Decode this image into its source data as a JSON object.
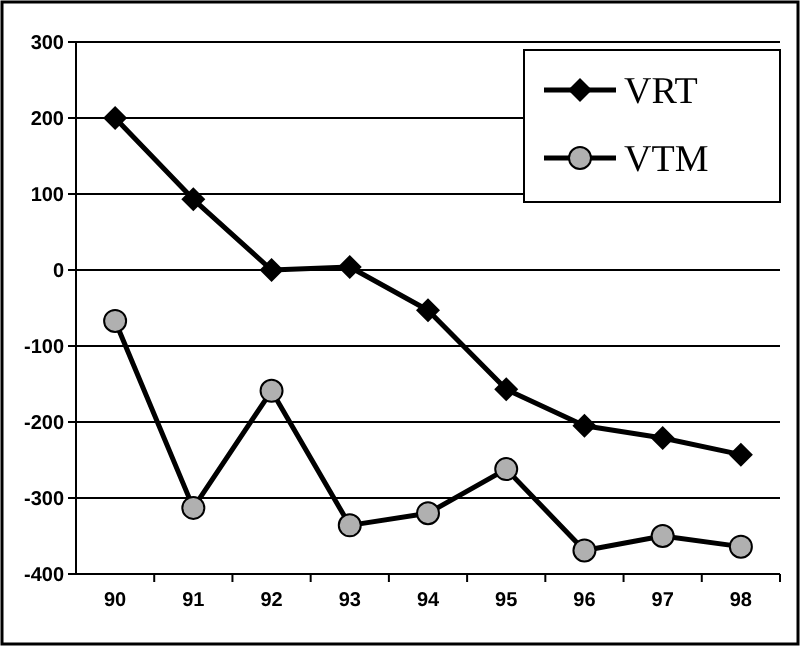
{
  "chart_data": {
    "type": "line",
    "categories": [
      "90",
      "91",
      "92",
      "93",
      "94",
      "95",
      "96",
      "97",
      "98"
    ],
    "series": [
      {
        "name": "VRT",
        "color": "#000000",
        "marker": "diamond",
        "values": [
          200,
          93,
          0,
          4,
          -53,
          -157,
          -205,
          -221,
          -243
        ]
      },
      {
        "name": "VTM",
        "color": "#000000",
        "marker": "circle",
        "values": [
          -67,
          -313,
          -159,
          -336,
          -320,
          -262,
          -369,
          -350,
          -364
        ]
      }
    ],
    "ylim": [
      -400,
      300
    ],
    "yticks": [
      -400,
      -300,
      -200,
      -100,
      0,
      100,
      200,
      300
    ],
    "grid": "y",
    "legend": "top right",
    "line_style": "solid"
  }
}
